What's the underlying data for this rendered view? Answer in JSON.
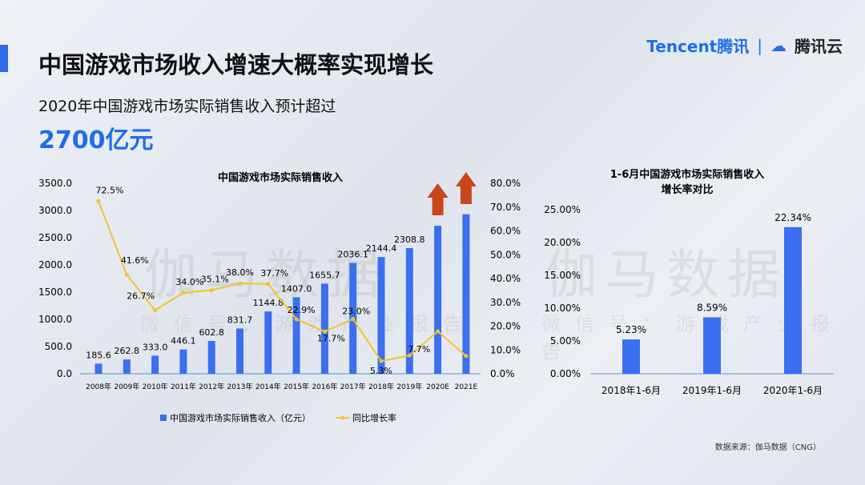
{
  "header": {
    "title": "中国游戏市场收入增速大概率实现增长",
    "subtitle": "2020年中国游戏市场实际销售收入预计超过",
    "highlight": "2700亿元",
    "logo_tencent": "Tencent腾讯",
    "logo_sep": "|",
    "logo_cloud": "腾讯云"
  },
  "watermark": {
    "main": "伽马数据",
    "sub": "微信号：游戏产业报告"
  },
  "source": "数据来源：伽马数据（CNG）",
  "colors": {
    "bar": "#3a6ff0",
    "line": "#f5c22c",
    "arrow": "#c9461c",
    "accent": "#1f6ee8"
  },
  "chart_data": [
    {
      "type": "bar+line",
      "title": "中国游戏市场实际销售收入",
      "categories": [
        "2008年",
        "2009年",
        "2010年",
        "2011年",
        "2012年",
        "2013年",
        "2014年",
        "2015年",
        "2016年",
        "2017年",
        "2018年",
        "2019年",
        "2020E",
        "2021E"
      ],
      "series": [
        {
          "name": "中国游戏市场实际销售收入（亿元）",
          "type": "bar",
          "axis": "left",
          "values": [
            185.6,
            262.8,
            333.0,
            446.1,
            602.8,
            831.7,
            1144.8,
            1407.0,
            1655.7,
            2036.1,
            2144.4,
            2308.8,
            2720,
            2930
          ],
          "labels": [
            "185.6",
            "262.8",
            "333.0",
            "446.1",
            "602.8",
            "831.7",
            "1144.8",
            "1407.0",
            "1655.7",
            "2036.1",
            "2144.4",
            "2308.8",
            "",
            ""
          ]
        },
        {
          "name": "同比增长率",
          "type": "line",
          "axis": "right",
          "values": [
            72.5,
            41.6,
            26.7,
            34.0,
            35.1,
            38.0,
            37.7,
            22.9,
            17.7,
            23.0,
            5.3,
            7.7,
            17.8,
            7.5
          ],
          "labels": [
            "72.5%",
            "41.6%",
            "26.7%",
            "34.0%",
            "35.1%",
            "38.0%",
            "37.7%",
            "22.9%",
            "17.7%",
            "23.0%",
            "5.3%",
            "7.7%",
            "",
            ""
          ]
        }
      ],
      "ylim_left": [
        0,
        3500
      ],
      "yticks_left": [
        "0.0",
        "500.0",
        "1000.0",
        "1500.0",
        "2000.0",
        "2500.0",
        "3000.0",
        "3500.0"
      ],
      "ylim_right": [
        0,
        80
      ],
      "yticks_right": [
        "0.0%",
        "10.0%",
        "20.0%",
        "30.0%",
        "40.0%",
        "50.0%",
        "60.0%",
        "70.0%",
        "80.0%"
      ],
      "annotations": [
        "up arrows above 2020E and 2021E"
      ],
      "legend": "bottom"
    },
    {
      "type": "bar",
      "title": [
        "1-6月中国游戏市场实际销售收入",
        "增长率对比"
      ],
      "categories": [
        "2018年1-6月",
        "2019年1-6月",
        "2020年1-6月"
      ],
      "values": [
        5.23,
        8.59,
        22.34
      ],
      "labels": [
        "5.23%",
        "8.59%",
        "22.34%"
      ],
      "ylim": [
        0,
        25
      ],
      "yticks": [
        "0.00%",
        "5.00%",
        "10.00%",
        "15.00%",
        "20.00%",
        "25.00%"
      ]
    }
  ]
}
